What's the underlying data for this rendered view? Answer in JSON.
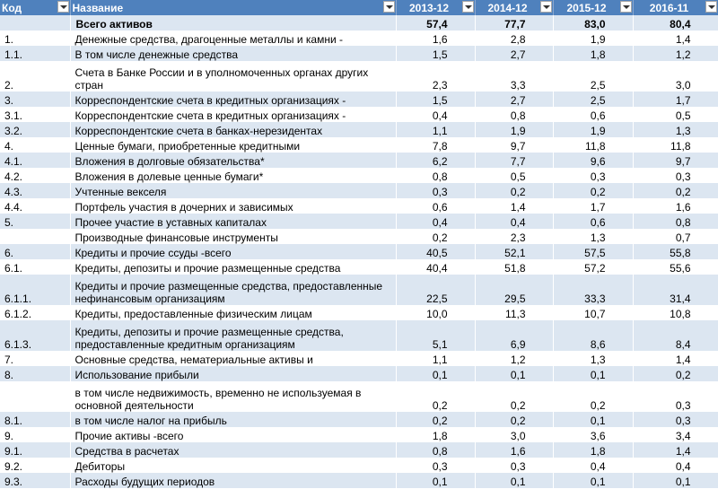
{
  "header": {
    "code": "Код",
    "name": "Название",
    "years": [
      "2013-12",
      "2014-12",
      "2015-12",
      "2016-11"
    ]
  },
  "rows": [
    {
      "code": "",
      "name": "Всего активов",
      "v": [
        "57,4",
        "77,7",
        "83,0",
        "80,4"
      ]
    },
    {
      "code": "1.",
      "name": "Денежные средства, драгоценные металлы и камни -",
      "v": [
        "1,6",
        "2,8",
        "1,9",
        "1,4"
      ]
    },
    {
      "code": "1.1.",
      "name": "В том числе денежные средства",
      "v": [
        "1,5",
        "2,7",
        "1,8",
        "1,2"
      ]
    },
    {
      "code": "2.",
      "name": "Счета в Банке России и в уполномоченных органах других стран",
      "v": [
        "2,3",
        "3,3",
        "2,5",
        "3,0"
      ]
    },
    {
      "code": "3.",
      "name": "Корреспондентские счета в кредитных организациях -",
      "v": [
        "1,5",
        "2,7",
        "2,5",
        "1,7"
      ]
    },
    {
      "code": "3.1.",
      "name": "Корреспондентские счета в кредитных организациях -",
      "v": [
        "0,4",
        "0,8",
        "0,6",
        "0,5"
      ]
    },
    {
      "code": "3.2.",
      "name": "Корреспондентские счета в банках-нерезидентах",
      "v": [
        "1,1",
        "1,9",
        "1,9",
        "1,3"
      ]
    },
    {
      "code": "4.",
      "name": "Ценные бумаги, приобретенные кредитными",
      "v": [
        "7,8",
        "9,7",
        "11,8",
        "11,8"
      ]
    },
    {
      "code": "4.1.",
      "name": "Вложения в долговые обязательства*",
      "v": [
        "6,2",
        "7,7",
        "9,6",
        "9,7"
      ]
    },
    {
      "code": "4.2.",
      "name": "Вложения в долевые ценные бумаги*",
      "v": [
        "0,8",
        "0,5",
        "0,3",
        "0,3"
      ]
    },
    {
      "code": "4.3.",
      "name": "Учтенные векселя",
      "v": [
        "0,3",
        "0,2",
        "0,2",
        "0,2"
      ]
    },
    {
      "code": "4.4.",
      "name": "Портфель участия в дочерних и зависимых",
      "v": [
        "0,6",
        "1,4",
        "1,7",
        "1,6"
      ]
    },
    {
      "code": "5.",
      "name": "Прочее участие в уставных капиталах",
      "v": [
        "0,4",
        "0,4",
        "0,6",
        "0,8"
      ]
    },
    {
      "code": "",
      "name": "Производные финансовые инструменты",
      "v": [
        "0,2",
        "2,3",
        "1,3",
        "0,7"
      ]
    },
    {
      "code": "6.",
      "name": "Кредиты и прочие ссуды -всего",
      "v": [
        "40,5",
        "52,1",
        "57,5",
        "55,8"
      ]
    },
    {
      "code": "6.1.",
      "name": "Кредиты, депозиты и прочие размещенные средства",
      "v": [
        "40,4",
        "51,8",
        "57,2",
        "55,6"
      ]
    },
    {
      "code": "6.1.1.",
      "name": "Кредиты и прочие размещенные средства, предоставленные нефинансовым организациям",
      "v": [
        "22,5",
        "29,5",
        "33,3",
        "31,4"
      ]
    },
    {
      "code": "6.1.2.",
      "name": "Кредиты, предоставленные физическим лицам",
      "v": [
        "10,0",
        "11,3",
        "10,7",
        "10,8"
      ]
    },
    {
      "code": "6.1.3.",
      "name": "Кредиты, депозиты и прочие размещенные средства, предоставленные кредитным организациям",
      "v": [
        "5,1",
        "6,9",
        "8,6",
        "8,4"
      ]
    },
    {
      "code": "7.",
      "name": "Основные средства, нематериальные активы и",
      "v": [
        "1,1",
        "1,2",
        "1,3",
        "1,4"
      ]
    },
    {
      "code": "8.",
      "name": "Использование прибыли",
      "v": [
        "0,1",
        "0,1",
        "0,1",
        "0,2"
      ]
    },
    {
      "code": "",
      "name": "в том числе недвижимость, временно не используемая в основной деятельности",
      "v": [
        "0,2",
        "0,2",
        "0,2",
        "0,3"
      ]
    },
    {
      "code": "8.1.",
      "name": "в том числе налог на прибыль",
      "v": [
        "0,2",
        "0,2",
        "0,1",
        "0,3"
      ]
    },
    {
      "code": "9.",
      "name": "Прочие активы -всего",
      "v": [
        "1,8",
        "3,0",
        "3,6",
        "3,4"
      ]
    },
    {
      "code": "9.1.",
      "name": "Средства в расчетах",
      "v": [
        "0,8",
        "1,6",
        "1,8",
        "1,4"
      ]
    },
    {
      "code": "9.2.",
      "name": "Дебиторы",
      "v": [
        "0,3",
        "0,3",
        "0,4",
        "0,4"
      ]
    },
    {
      "code": "9.3.",
      "name": "Расходы будущих периодов",
      "v": [
        "0,1",
        "0,1",
        "0,1",
        "0,1"
      ]
    }
  ]
}
